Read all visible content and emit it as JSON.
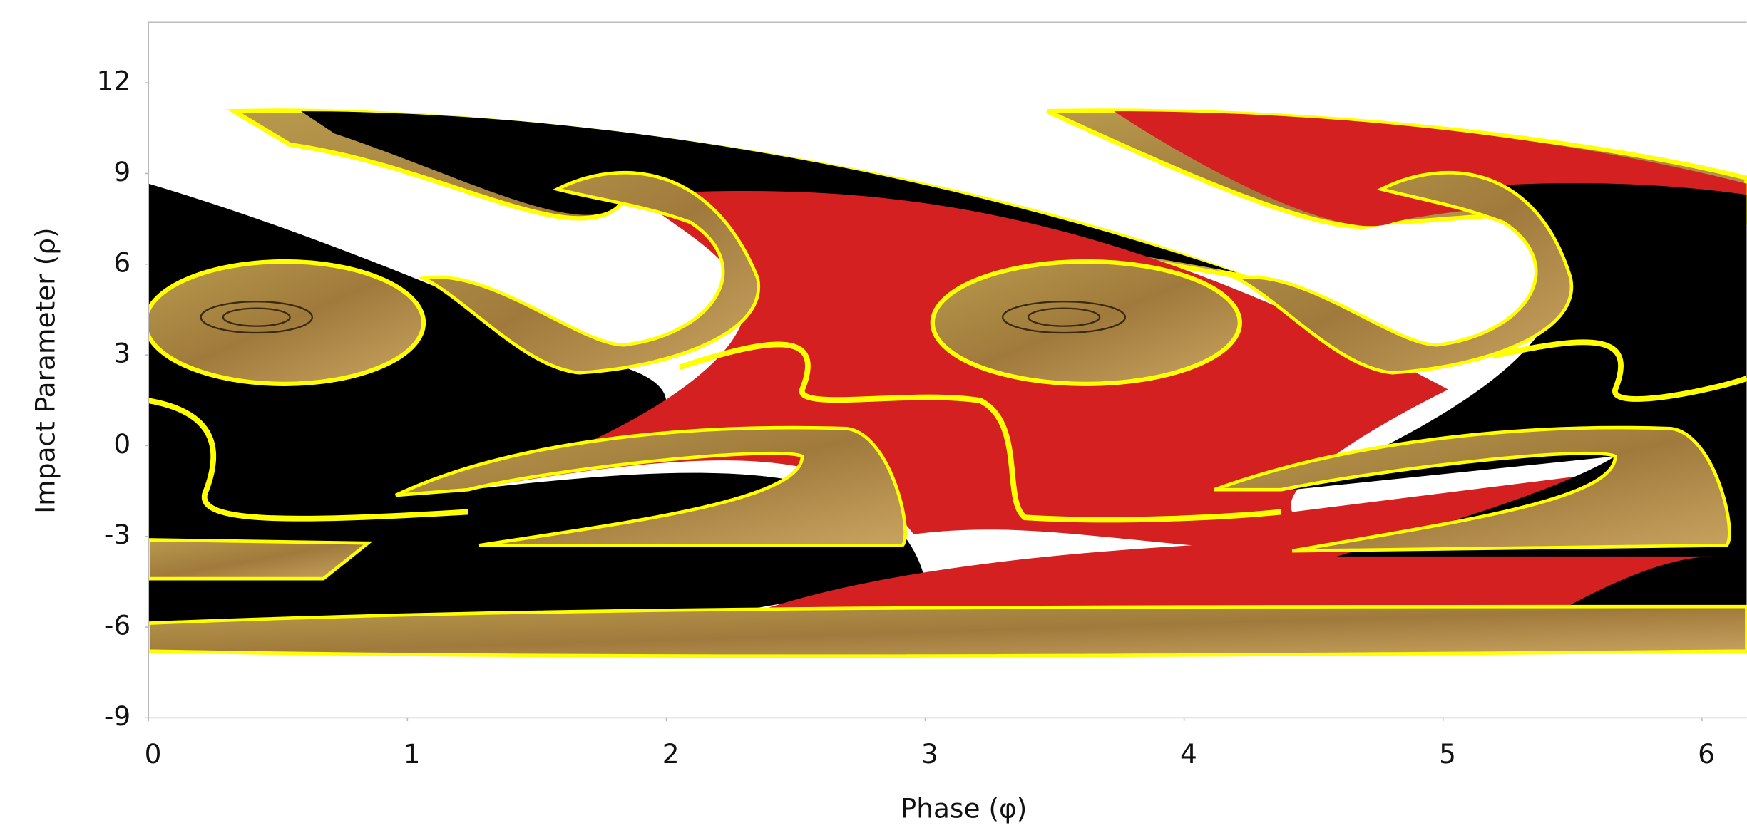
{
  "chart_data": {
    "type": "basin-map",
    "x_label": "Phase (φ)",
    "y_label": "Impact Parameter (ρ)",
    "xlim": [
      0,
      6.28
    ],
    "ylim": [
      -9,
      14
    ],
    "xticks": [
      0,
      1,
      2,
      3,
      4,
      5,
      6
    ],
    "yticks": [
      -9,
      -6,
      -3,
      0,
      3,
      6,
      9,
      12
    ],
    "grid": false
  }
}
